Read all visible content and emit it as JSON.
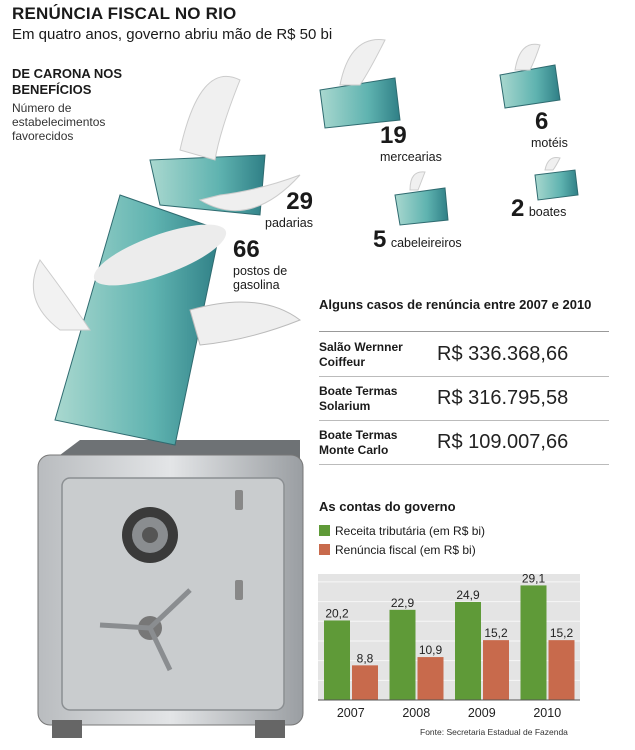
{
  "header": {
    "title": "RENÚNCIA FISCAL NO RIO",
    "subtitle": "Em quatro anos, governo abriu mão de R$ 50 bi"
  },
  "establishments": {
    "title": "DE CARONA NOS BENEFÍCIOS",
    "description": "Número de estabelecimentos favorecidos",
    "items": [
      {
        "count": "66",
        "label": "postos de gasolina"
      },
      {
        "count": "29",
        "label": "padarias"
      },
      {
        "count": "19",
        "label": "mercearias"
      },
      {
        "count": "6",
        "label": "motéis"
      },
      {
        "count": "5",
        "label": "cabeleireiros"
      },
      {
        "count": "2",
        "label": "boates"
      }
    ]
  },
  "cases": {
    "title": "Alguns casos de renúncia entre 2007 e 2010",
    "rows": [
      {
        "name": "Salão Wernner Coiffeur",
        "value": "R$ 336.368,66"
      },
      {
        "name": "Boate Termas Solarium",
        "value": "R$ 316.795,58"
      },
      {
        "name": "Boate Termas Monte Carlo",
        "value": "R$ 109.007,66"
      }
    ]
  },
  "colors": {
    "green": "#5f9a38",
    "orange": "#c86a4c",
    "chart_bg": "#e4e4e4"
  },
  "chart_data": {
    "type": "bar",
    "title": "As contas do governo",
    "categories": [
      "2007",
      "2008",
      "2009",
      "2010"
    ],
    "series": [
      {
        "name": "Receita tributária (em R$ bi)",
        "values": [
          20.2,
          22.9,
          24.9,
          29.1
        ],
        "labels": [
          "20,2",
          "22,9",
          "24,9",
          "29,1"
        ]
      },
      {
        "name": "Renúncia fiscal (em R$ bi)",
        "values": [
          8.8,
          10.9,
          15.2,
          15.2
        ],
        "labels": [
          "8,8",
          "10,9",
          "15,2",
          "15,2"
        ]
      }
    ],
    "ylim": [
      0,
      32
    ],
    "grid": true,
    "legend": "top-left",
    "source": "Fonte: Secretaria Estadual de Fazenda"
  }
}
